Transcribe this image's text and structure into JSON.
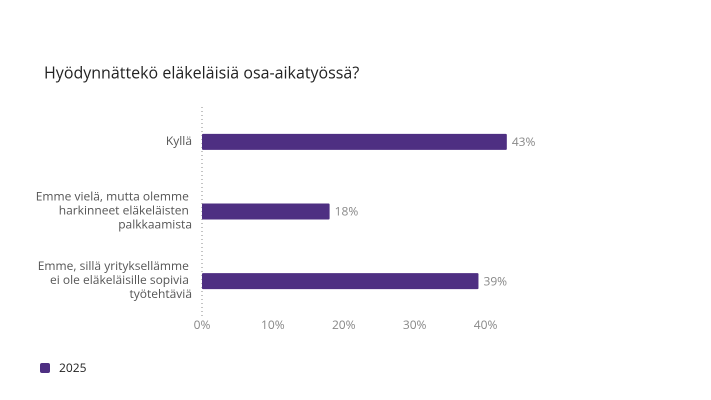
{
  "chart_data": {
    "type": "bar",
    "orientation": "horizontal",
    "title": "Hyödynnättekö eläkeläisiä osa-aikatyössä?",
    "categories": [
      "Kyllä",
      "Emme vielä, mutta olemme harkinneet eläkeläisten palkkaamista",
      "Emme, sillä yrityksellämme ei ole eläkeläisille sopivia työtehtäviä"
    ],
    "series": [
      {
        "name": "2025",
        "color": "#4e2f82",
        "values": [
          43,
          18,
          39
        ],
        "value_labels": [
          "43%",
          "18%",
          "39%"
        ]
      }
    ],
    "xlim": [
      0,
      45
    ],
    "xticks": [
      {
        "value": 0,
        "label": "0%"
      },
      {
        "value": 10,
        "label": "10%"
      },
      {
        "value": 20,
        "label": "20%"
      },
      {
        "value": 30,
        "label": "30%"
      },
      {
        "value": 40,
        "label": "40%"
      }
    ],
    "legend": "bottom-left"
  }
}
